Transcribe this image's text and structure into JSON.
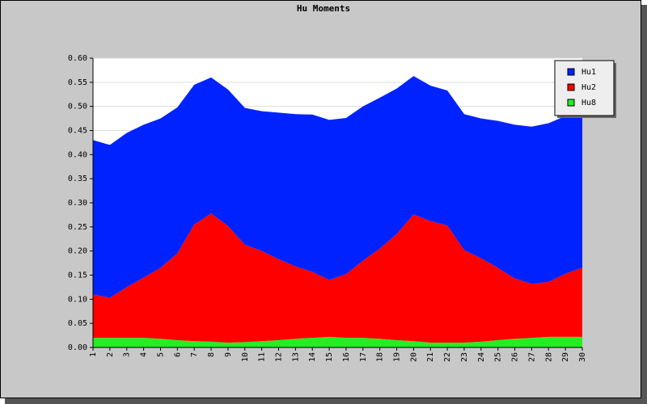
{
  "chart_data": {
    "type": "stacked-area",
    "title": "Hu Moments",
    "categories": [
      "1",
      "2",
      "3",
      "4",
      "5",
      "6",
      "7",
      "8",
      "9",
      "10",
      "11",
      "12",
      "13",
      "14",
      "15",
      "16",
      "17",
      "18",
      "19",
      "20",
      "21",
      "22",
      "23",
      "24",
      "25",
      "26",
      "27",
      "28",
      "29",
      "30"
    ],
    "series": [
      {
        "name": "Hu1",
        "color": "#0022ff",
        "values": [
          0.32,
          0.317,
          0.32,
          0.317,
          0.31,
          0.303,
          0.29,
          0.282,
          0.283,
          0.284,
          0.29,
          0.304,
          0.316,
          0.326,
          0.332,
          0.324,
          0.32,
          0.313,
          0.302,
          0.287,
          0.281,
          0.28,
          0.282,
          0.29,
          0.305,
          0.319,
          0.326,
          0.329,
          0.327,
          0.313
        ]
      },
      {
        "name": "Hu2",
        "color": "#ff0000",
        "values": [
          0.09,
          0.083,
          0.105,
          0.125,
          0.147,
          0.18,
          0.242,
          0.266,
          0.242,
          0.202,
          0.187,
          0.168,
          0.15,
          0.137,
          0.118,
          0.132,
          0.16,
          0.187,
          0.22,
          0.263,
          0.252,
          0.243,
          0.192,
          0.173,
          0.15,
          0.125,
          0.112,
          0.114,
          0.131,
          0.143
        ]
      },
      {
        "name": "Hu8",
        "color": "#22ee22",
        "values": [
          0.02,
          0.02,
          0.02,
          0.02,
          0.018,
          0.015,
          0.013,
          0.012,
          0.01,
          0.011,
          0.013,
          0.015,
          0.018,
          0.02,
          0.022,
          0.02,
          0.02,
          0.018,
          0.015,
          0.013,
          0.01,
          0.01,
          0.01,
          0.012,
          0.015,
          0.018,
          0.02,
          0.022,
          0.022,
          0.022
        ]
      }
    ],
    "ylim": [
      0,
      0.6
    ],
    "yticks": [
      {
        "value": 0,
        "label": "0.00"
      },
      {
        "value": 0.05,
        "label": "0.05"
      },
      {
        "value": 0.1,
        "label": "0.10"
      },
      {
        "value": 0.15,
        "label": "0.15"
      },
      {
        "value": 0.2,
        "label": "0.20"
      },
      {
        "value": 0.25,
        "label": "0.25"
      },
      {
        "value": 0.3,
        "label": "0.30"
      },
      {
        "value": 0.35,
        "label": "0.35"
      },
      {
        "value": 0.4,
        "label": "0.40"
      },
      {
        "value": 0.45,
        "label": "0.45"
      },
      {
        "value": 0.5,
        "label": "0.50"
      },
      {
        "value": 0.55,
        "label": "0.55"
      },
      {
        "value": 0.6,
        "label": "0.60"
      }
    ],
    "grid": true,
    "legend": "top-right"
  }
}
